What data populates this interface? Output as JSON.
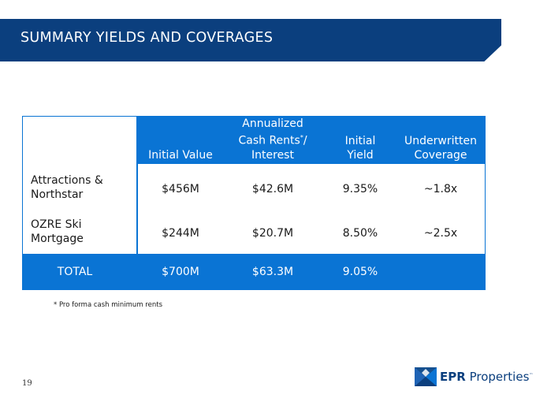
{
  "slide": {
    "title": "SUMMARY YIELDS AND COVERAGES",
    "page_number": "19",
    "footnote": "* Pro forma cash minimum rents"
  },
  "table": {
    "headers": {
      "initial_value": "Initial Value",
      "annualized_line1": "Annualized",
      "annualized_line2_main": "Cash Rents",
      "annualized_line2_sup": "*",
      "annualized_line2_tail": "/",
      "annualized_line3": "Interest",
      "initial_yield_line1": "Initial",
      "initial_yield_line2": "Yield",
      "coverage_line1": "Underwritten",
      "coverage_line2": "Coverage"
    },
    "rows": [
      {
        "label_line1": "Attractions &",
        "label_line2": "Northstar",
        "initial_value": "$456M",
        "annualized": "$42.6M",
        "initial_yield": "9.35%",
        "coverage": "~1.8x"
      },
      {
        "label_line1": "OZRE Ski",
        "label_line2": "Mortgage",
        "initial_value": "$244M",
        "annualized": "$20.7M",
        "initial_yield": "8.50%",
        "coverage": "~2.5x"
      }
    ],
    "total": {
      "label": "TOTAL",
      "initial_value": "$700M",
      "annualized": "$63.3M",
      "initial_yield": "9.05%",
      "coverage": ""
    }
  },
  "logo": {
    "brand_bold": "EPR",
    "brand_light": "Properties",
    "trademark": "™"
  },
  "colors": {
    "banner": "#0b3f7e",
    "table_blue": "#0a74d4",
    "text": "#1a1a1a"
  }
}
